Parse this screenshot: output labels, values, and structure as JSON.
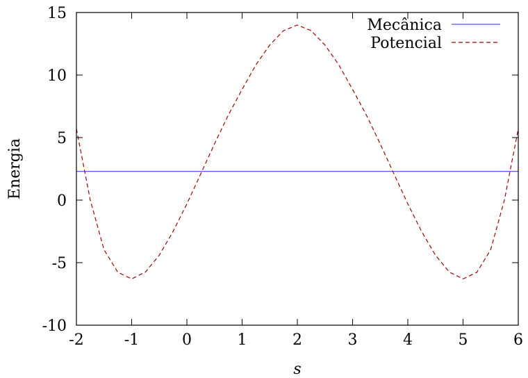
{
  "chart_data": {
    "type": "line",
    "xlabel": "s",
    "ylabel": "Energia",
    "xlim": [
      -2,
      6
    ],
    "ylim": [
      -10,
      15
    ],
    "xticks": [
      -2,
      -1,
      0,
      1,
      2,
      3,
      4,
      5,
      6
    ],
    "yticks": [
      -10,
      -5,
      0,
      5,
      10,
      15
    ],
    "grid": false,
    "legend_position": "top-right",
    "series": [
      {
        "name": "Mecânica",
        "color": "#5555ee",
        "style": "solid",
        "x": [
          -2,
          6
        ],
        "y": [
          2.3,
          2.3
        ]
      },
      {
        "name": "Potencial",
        "color": "#aa0000",
        "style": "dashed",
        "x": [
          -2.0,
          -1.75,
          -1.5,
          -1.25,
          -1.0,
          -0.75,
          -0.5,
          -0.25,
          0.0,
          0.25,
          0.5,
          0.75,
          1.0,
          1.25,
          1.5,
          1.75,
          2.0,
          2.25,
          2.5,
          2.75,
          3.0,
          3.25,
          3.5,
          3.75,
          4.0,
          4.25,
          4.5,
          4.75,
          5.0,
          5.25,
          5.5,
          5.75,
          6.0
        ],
        "y": [
          5.7,
          0.02,
          -3.97,
          -5.77,
          -6.3,
          -5.75,
          -4.4,
          -2.51,
          -0.3,
          2.09,
          4.5,
          6.8,
          8.85,
          10.82,
          12.4,
          13.55,
          14.0,
          13.55,
          12.4,
          10.82,
          8.85,
          6.8,
          4.5,
          2.09,
          -0.3,
          -2.51,
          -4.4,
          -5.75,
          -6.3,
          -5.77,
          -3.97,
          0.02,
          5.7
        ]
      }
    ]
  }
}
